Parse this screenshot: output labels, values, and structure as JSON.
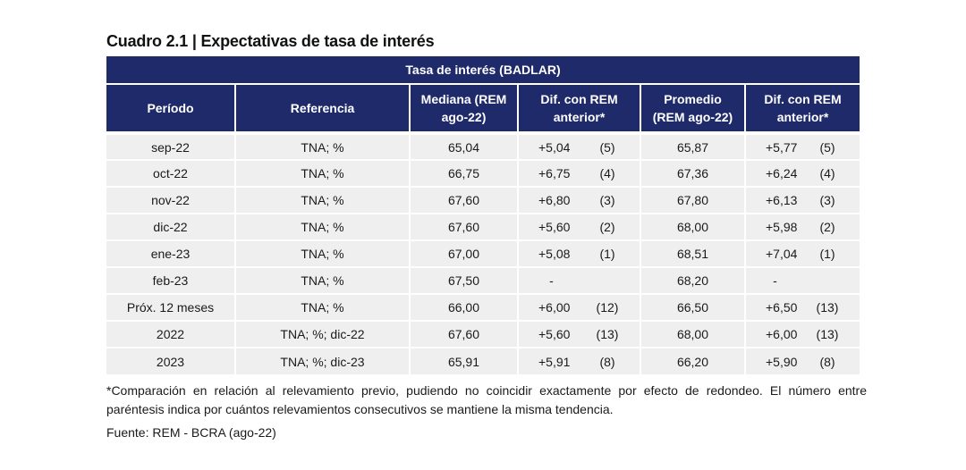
{
  "title": "Cuadro 2.1 | Expectativas de tasa de interés",
  "table": {
    "band": "Tasa de interés (BADLAR)",
    "headers": [
      "Período",
      "Referencia",
      "Mediana (REM ago-22)",
      "Dif. con REM anterior*",
      "Promedio (REM ago-22)",
      "Dif. con REM anterior*"
    ],
    "rows": [
      {
        "periodo": "sep-22",
        "referencia": "TNA; %",
        "mediana": "65,04",
        "dif_med": "+5,04",
        "n_med": "(5)",
        "promedio": "65,87",
        "dif_prom": "+5,77",
        "n_prom": "(5)"
      },
      {
        "periodo": "oct-22",
        "referencia": "TNA; %",
        "mediana": "66,75",
        "dif_med": "+6,75",
        "n_med": "(4)",
        "promedio": "67,36",
        "dif_prom": "+6,24",
        "n_prom": "(4)"
      },
      {
        "periodo": "nov-22",
        "referencia": "TNA; %",
        "mediana": "67,60",
        "dif_med": "+6,80",
        "n_med": "(3)",
        "promedio": "67,80",
        "dif_prom": "+6,13",
        "n_prom": "(3)"
      },
      {
        "periodo": "dic-22",
        "referencia": "TNA; %",
        "mediana": "67,60",
        "dif_med": "+5,60",
        "n_med": "(2)",
        "promedio": "68,00",
        "dif_prom": "+5,98",
        "n_prom": "(2)"
      },
      {
        "periodo": "ene-23",
        "referencia": "TNA; %",
        "mediana": "67,00",
        "dif_med": "+5,08",
        "n_med": "(1)",
        "promedio": "68,51",
        "dif_prom": "+7,04",
        "n_prom": "(1)"
      },
      {
        "periodo": "feb-23",
        "referencia": "TNA; %",
        "mediana": "67,50",
        "dif_med": "-",
        "n_med": "",
        "promedio": "68,20",
        "dif_prom": "-",
        "n_prom": ""
      },
      {
        "periodo": "Próx. 12 meses",
        "referencia": "TNA; %",
        "mediana": "66,00",
        "dif_med": "+6,00",
        "n_med": "(12)",
        "promedio": "66,50",
        "dif_prom": "+6,50",
        "n_prom": "(13)"
      },
      {
        "periodo": "2022",
        "referencia": "TNA; %; dic-22",
        "mediana": "67,60",
        "dif_med": "+5,60",
        "n_med": "(13)",
        "promedio": "68,00",
        "dif_prom": "+6,00",
        "n_prom": "(13)"
      },
      {
        "periodo": "2023",
        "referencia": "TNA; %; dic-23",
        "mediana": "65,91",
        "dif_med": "+5,91",
        "n_med": "(8)",
        "promedio": "66,20",
        "dif_prom": "+5,90",
        "n_prom": "(8)"
      }
    ]
  },
  "note": "*Comparación en relación al relevamiento previo, pudiendo no coincidir exactamente por efecto de redondeo. El número entre paréntesis indica por cuántos relevamientos consecutivos se mantiene la misma tendencia.",
  "source": "Fuente: REM - BCRA (ago-22)",
  "colors": {
    "header_bg": "#1f2a6b",
    "row_bg": "#efefef"
  }
}
